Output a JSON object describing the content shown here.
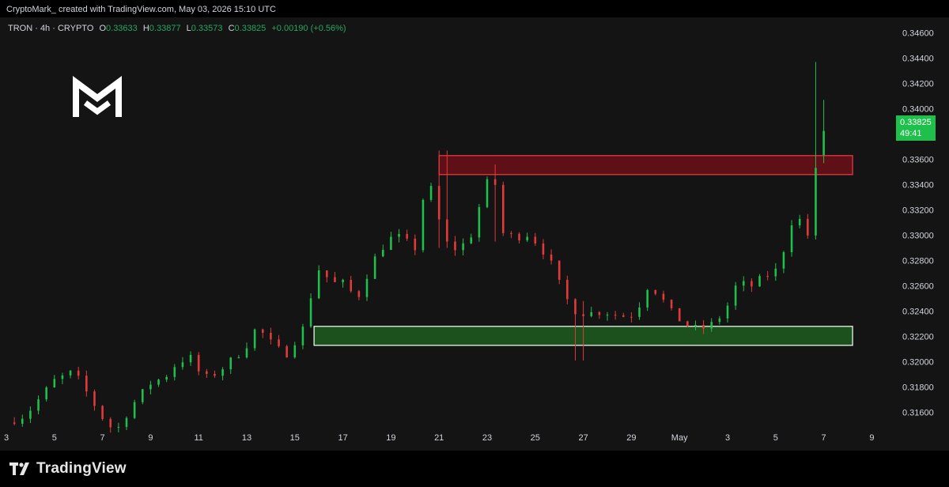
{
  "header": {
    "attribution": "CryptoMark_ created with TradingView.com, May 03, 2026 15:10 UTC"
  },
  "legend": {
    "symbol": "TRON · 4h · CRYPTO",
    "open_label": "O",
    "open": "0.33633",
    "high_label": "H",
    "high": "0.33877",
    "low_label": "L",
    "low": "0.33573",
    "close_label": "C",
    "close": "0.33825",
    "change": "+0.00190 (+0.56%)"
  },
  "price_tag": {
    "price": "0.33825",
    "countdown": "49:41",
    "color": "#1fbf4c"
  },
  "footer": {
    "logo_text": "TradingView"
  },
  "colors": {
    "up": "#1fbf4c",
    "down": "#e23a3a",
    "resistance_zone": "#6b0f16",
    "support_zone": "#1d5a1d"
  },
  "chart_data": {
    "type": "candlestick",
    "interval": "4h",
    "ylim": [
      0.3146,
      0.3466
    ],
    "y_ticks": [
      "0.34600",
      "0.34400",
      "0.34200",
      "0.34000",
      "0.33800",
      "0.33600",
      "0.33400",
      "0.33200",
      "0.33000",
      "0.32800",
      "0.32600",
      "0.32400",
      "0.32200",
      "0.32000",
      "0.31800",
      "0.31600"
    ],
    "x_ticks": [
      "3",
      "5",
      "7",
      "9",
      "11",
      "13",
      "15",
      "17",
      "19",
      "21",
      "23",
      "25",
      "27",
      "29",
      "May",
      "3",
      "5",
      "7",
      "9"
    ],
    "zones": [
      {
        "type": "resistance",
        "from_tick": 9,
        "to_tick": 17.6,
        "low": 0.3348,
        "high": 0.3363
      },
      {
        "type": "support",
        "from_tick": 6.4,
        "to_tick": 17.6,
        "low": 0.3213,
        "high": 0.3228
      }
    ],
    "path": [
      {
        "t": 0.0,
        "p": 0.3152
      },
      {
        "t": 0.4,
        "p": 0.3158
      },
      {
        "t": 1.0,
        "p": 0.3185
      },
      {
        "t": 1.4,
        "p": 0.3192
      },
      {
        "t": 1.8,
        "p": 0.3168
      },
      {
        "t": 2.1,
        "p": 0.315
      },
      {
        "t": 2.3,
        "p": 0.3146
      },
      {
        "t": 2.6,
        "p": 0.3165
      },
      {
        "t": 3.0,
        "p": 0.3183
      },
      {
        "t": 3.3,
        "p": 0.3188
      },
      {
        "t": 3.5,
        "p": 0.3197
      },
      {
        "t": 3.8,
        "p": 0.3205
      },
      {
        "t": 4.1,
        "p": 0.3186
      },
      {
        "t": 4.4,
        "p": 0.3192
      },
      {
        "t": 4.8,
        "p": 0.3205
      },
      {
        "t": 5.1,
        "p": 0.3218
      },
      {
        "t": 5.2,
        "p": 0.3228
      },
      {
        "t": 5.5,
        "p": 0.3215
      },
      {
        "t": 5.8,
        "p": 0.3205
      },
      {
        "t": 6.2,
        "p": 0.3228
      },
      {
        "t": 6.35,
        "p": 0.3255
      },
      {
        "t": 6.45,
        "p": 0.3275
      },
      {
        "t": 6.8,
        "p": 0.3262
      },
      {
        "t": 7.0,
        "p": 0.3262
      },
      {
        "t": 7.3,
        "p": 0.325
      },
      {
        "t": 7.6,
        "p": 0.3278
      },
      {
        "t": 7.9,
        "p": 0.3295
      },
      {
        "t": 8.1,
        "p": 0.33
      },
      {
        "t": 8.5,
        "p": 0.329
      },
      {
        "t": 8.75,
        "p": 0.3348
      },
      {
        "t": 8.95,
        "p": 0.332
      },
      {
        "t": 9.1,
        "p": 0.3295
      },
      {
        "t": 9.4,
        "p": 0.3288
      },
      {
        "t": 9.7,
        "p": 0.3302
      },
      {
        "t": 9.95,
        "p": 0.334
      },
      {
        "t": 10.15,
        "p": 0.3345
      },
      {
        "t": 10.3,
        "p": 0.3302
      },
      {
        "t": 10.6,
        "p": 0.3298
      },
      {
        "t": 10.8,
        "p": 0.3302
      },
      {
        "t": 11.1,
        "p": 0.3292
      },
      {
        "t": 11.35,
        "p": 0.3276
      },
      {
        "t": 11.6,
        "p": 0.3252
      },
      {
        "t": 11.85,
        "p": 0.324
      },
      {
        "t": 12.1,
        "p": 0.3238
      },
      {
        "t": 12.4,
        "p": 0.324
      },
      {
        "t": 12.8,
        "p": 0.3236
      },
      {
        "t": 13.1,
        "p": 0.3238
      },
      {
        "t": 13.3,
        "p": 0.326
      },
      {
        "t": 13.55,
        "p": 0.3255
      },
      {
        "t": 13.8,
        "p": 0.324
      },
      {
        "t": 14.1,
        "p": 0.323
      },
      {
        "t": 14.4,
        "p": 0.3225
      },
      {
        "t": 14.7,
        "p": 0.323
      },
      {
        "t": 14.95,
        "p": 0.324
      },
      {
        "t": 15.2,
        "p": 0.3262
      },
      {
        "t": 15.5,
        "p": 0.326
      },
      {
        "t": 15.8,
        "p": 0.3268
      },
      {
        "t": 16.0,
        "p": 0.3272
      },
      {
        "t": 16.2,
        "p": 0.3292
      },
      {
        "t": 16.4,
        "p": 0.332
      },
      {
        "t": 16.65,
        "p": 0.33
      },
      {
        "t": 16.8,
        "p": 0.3302
      },
      {
        "t": 16.85,
        "p": 0.3375
      },
      {
        "t": 16.95,
        "p": 0.3372
      },
      {
        "t": 17.1,
        "p": 0.3382
      }
    ],
    "spikes": [
      {
        "t": 9.1,
        "high": 0.3367,
        "low": 0.329
      },
      {
        "t": 10.1,
        "high": 0.3356,
        "low": 0.3295
      },
      {
        "t": 11.9,
        "high": 0.3248,
        "low": 0.3201
      },
      {
        "t": 16.85,
        "high": 0.3437,
        "low": 0.33
      },
      {
        "t": 17.0,
        "high": 0.3407,
        "low": 0.3357
      }
    ],
    "last_price": 0.33825
  }
}
